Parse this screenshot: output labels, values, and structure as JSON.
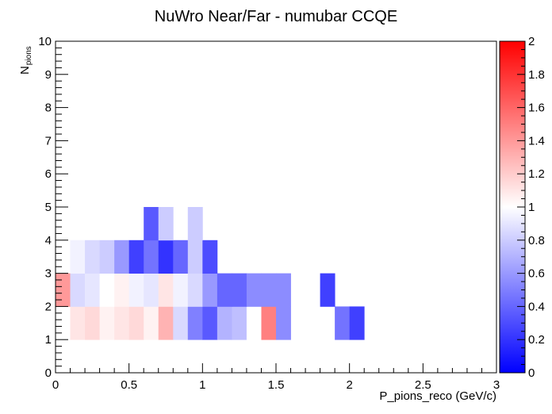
{
  "chart_data": {
    "type": "heatmap",
    "title": "NuWro Near/Far - numubar CCQE",
    "xlabel": "P_pions_reco (GeV/c)",
    "ylabel_main": "N",
    "ylabel_sub": "pions",
    "xlim": [
      0,
      3
    ],
    "ylim": [
      0,
      10
    ],
    "zlim": [
      0,
      2
    ],
    "x_ticks": [
      "0",
      "0.5",
      "1",
      "1.5",
      "2",
      "2.5",
      "3"
    ],
    "y_ticks": [
      "0",
      "1",
      "2",
      "3",
      "4",
      "5",
      "6",
      "7",
      "8",
      "9",
      "10"
    ],
    "z_ticks": [
      "0",
      "0.2",
      "0.4",
      "0.6",
      "0.8",
      "1",
      "1.2",
      "1.4",
      "1.6",
      "1.8",
      "2"
    ],
    "bin_width_x": 0.1,
    "bin_width_y": 1,
    "colormap": [
      "#0000ff",
      "#ffffff",
      "#ff0000"
    ],
    "rows": [
      {
        "y0": 0,
        "values": [
          1.0,
          1.0,
          1.0,
          1.0,
          1.0,
          1.0,
          1.0,
          1.0,
          1.0,
          1.0,
          1.0,
          1.0,
          1.0,
          1.0,
          1.0,
          1.0,
          1.0,
          1.0,
          1.0,
          1.0,
          1.0,
          1.0,
          1.0,
          1.0,
          1.0,
          1.0,
          1.0,
          1.0,
          1.0,
          1.0
        ]
      },
      {
        "y0": 1,
        "values": [
          1.0,
          1.1,
          1.15,
          1.05,
          1.1,
          1.15,
          1.05,
          1.3,
          0.85,
          0.5,
          0.35,
          0.7,
          0.75,
          1.0,
          1.5,
          0.55,
          null,
          null,
          null,
          0.45,
          0.25,
          null,
          null,
          null,
          null,
          null,
          null,
          null,
          null,
          null
        ]
      },
      {
        "y0": 2,
        "values": [
          1.4,
          0.85,
          0.9,
          1.0,
          1.05,
          0.95,
          0.9,
          1.1,
          0.95,
          0.85,
          0.6,
          0.4,
          0.4,
          0.55,
          0.55,
          0.55,
          null,
          null,
          0.25,
          null,
          null,
          null,
          null,
          null,
          null,
          null,
          null,
          null,
          null,
          null
        ]
      },
      {
        "y0": 3,
        "values": [
          null,
          0.95,
          0.85,
          0.8,
          0.6,
          0.25,
          0.45,
          0.2,
          0.4,
          0.8,
          0.3,
          null,
          null,
          null,
          null,
          null,
          null,
          null,
          null,
          null,
          null,
          null,
          null,
          null,
          null,
          null,
          null,
          null,
          null,
          null
        ]
      },
      {
        "y0": 4,
        "values": [
          null,
          null,
          null,
          null,
          null,
          null,
          0.35,
          0.8,
          null,
          0.8,
          null,
          null,
          null,
          null,
          null,
          null,
          null,
          null,
          null,
          null,
          null,
          null,
          null,
          null,
          null,
          null,
          null,
          null,
          null,
          null
        ]
      }
    ]
  }
}
